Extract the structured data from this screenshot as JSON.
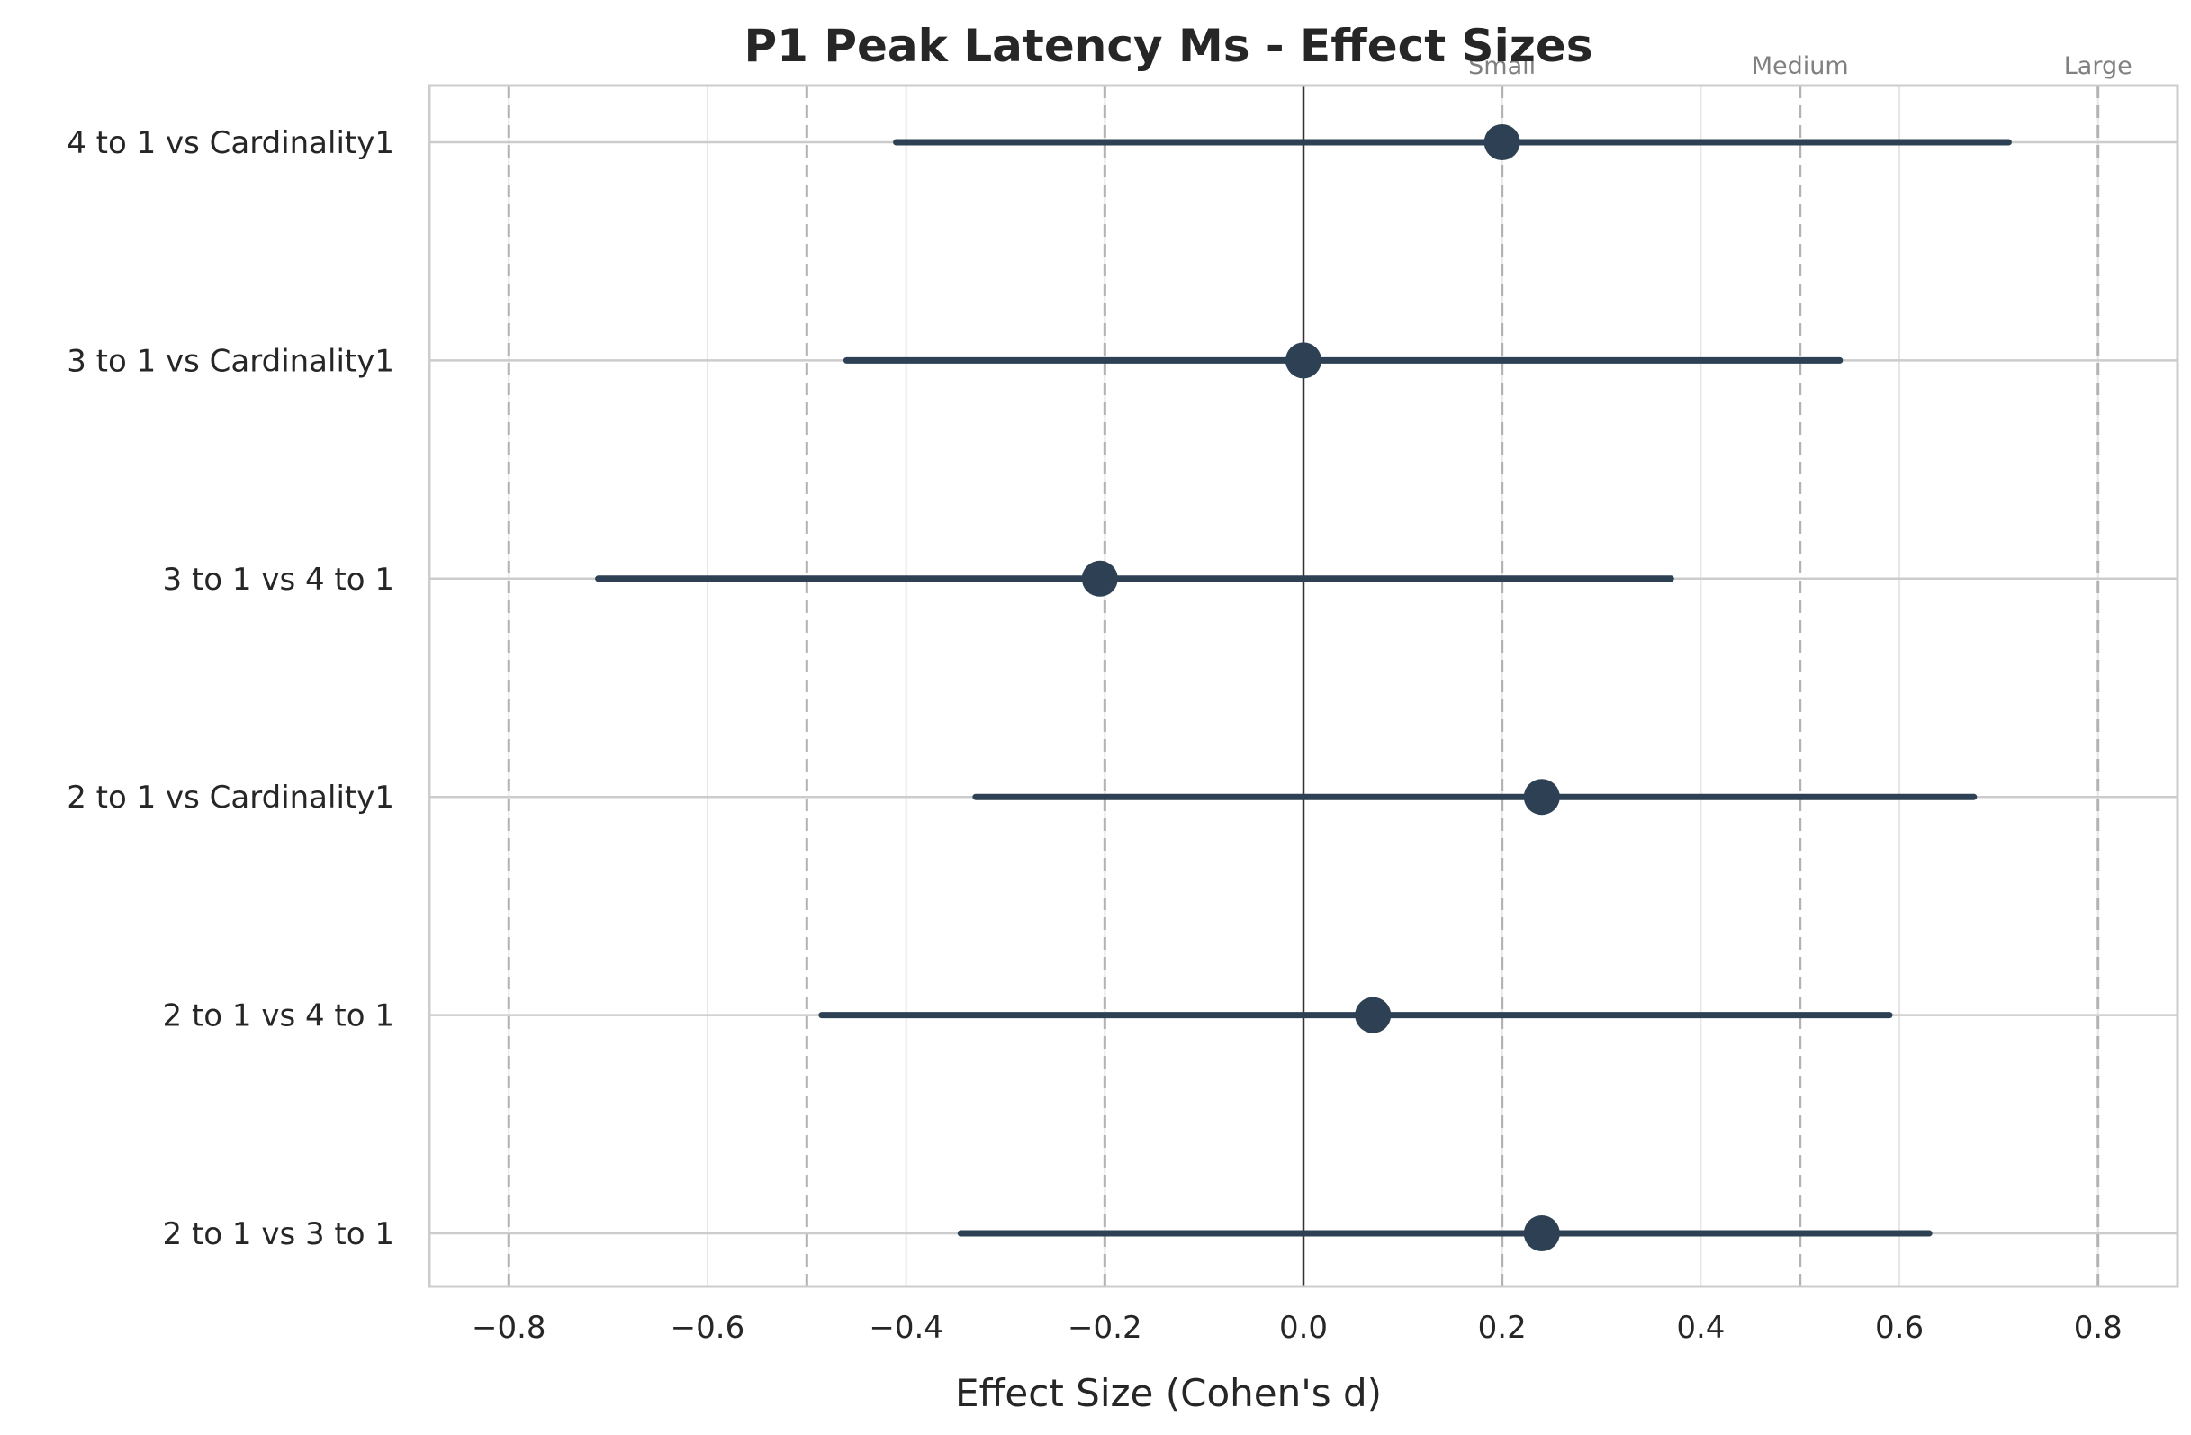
{
  "chart_data": {
    "type": "forest",
    "title": "P1 Peak Latency Ms - Effect Sizes",
    "xlabel": "Effect Size (Cohen's d)",
    "ylabel": "",
    "xlim": [
      -0.88,
      0.88
    ],
    "xticks": [
      -0.8,
      -0.6,
      -0.4,
      -0.2,
      0.0,
      0.2,
      0.4,
      0.6,
      0.8
    ],
    "xtick_labels": [
      "−0.8",
      "−0.6",
      "−0.4",
      "−0.2",
      "0.0",
      "0.2",
      "0.4",
      "0.6",
      "0.8"
    ],
    "grid": true,
    "zero_line": 0.0,
    "reference_lines": [
      {
        "value": -0.8,
        "label": ""
      },
      {
        "value": -0.5,
        "label": ""
      },
      {
        "value": -0.2,
        "label": ""
      },
      {
        "value": 0.2,
        "label": "Small"
      },
      {
        "value": 0.5,
        "label": "Medium"
      },
      {
        "value": 0.8,
        "label": "Large"
      }
    ],
    "comparisons": [
      {
        "label": "4 to 1 vs Cardinality1",
        "d": 0.2,
        "ci_low": -0.41,
        "ci_high": 0.71
      },
      {
        "label": "3 to 1 vs Cardinality1",
        "d": 0.0,
        "ci_low": -0.46,
        "ci_high": 0.54
      },
      {
        "label": "3 to 1 vs 4 to 1",
        "d": -0.205,
        "ci_low": -0.71,
        "ci_high": 0.37
      },
      {
        "label": "2 to 1 vs Cardinality1",
        "d": 0.24,
        "ci_low": -0.33,
        "ci_high": 0.675
      },
      {
        "label": "2 to 1 vs 4 to 1",
        "d": 0.07,
        "ci_low": -0.485,
        "ci_high": 0.59
      },
      {
        "label": "2 to 1 vs 3 to 1",
        "d": 0.24,
        "ci_low": -0.345,
        "ci_high": 0.63
      }
    ],
    "colors": {
      "marker": "#2e4053",
      "zero_line": "#333333",
      "reference_line": "#b3b3b3",
      "grid": "#e6e6e6",
      "frame": "#cccccc"
    }
  }
}
